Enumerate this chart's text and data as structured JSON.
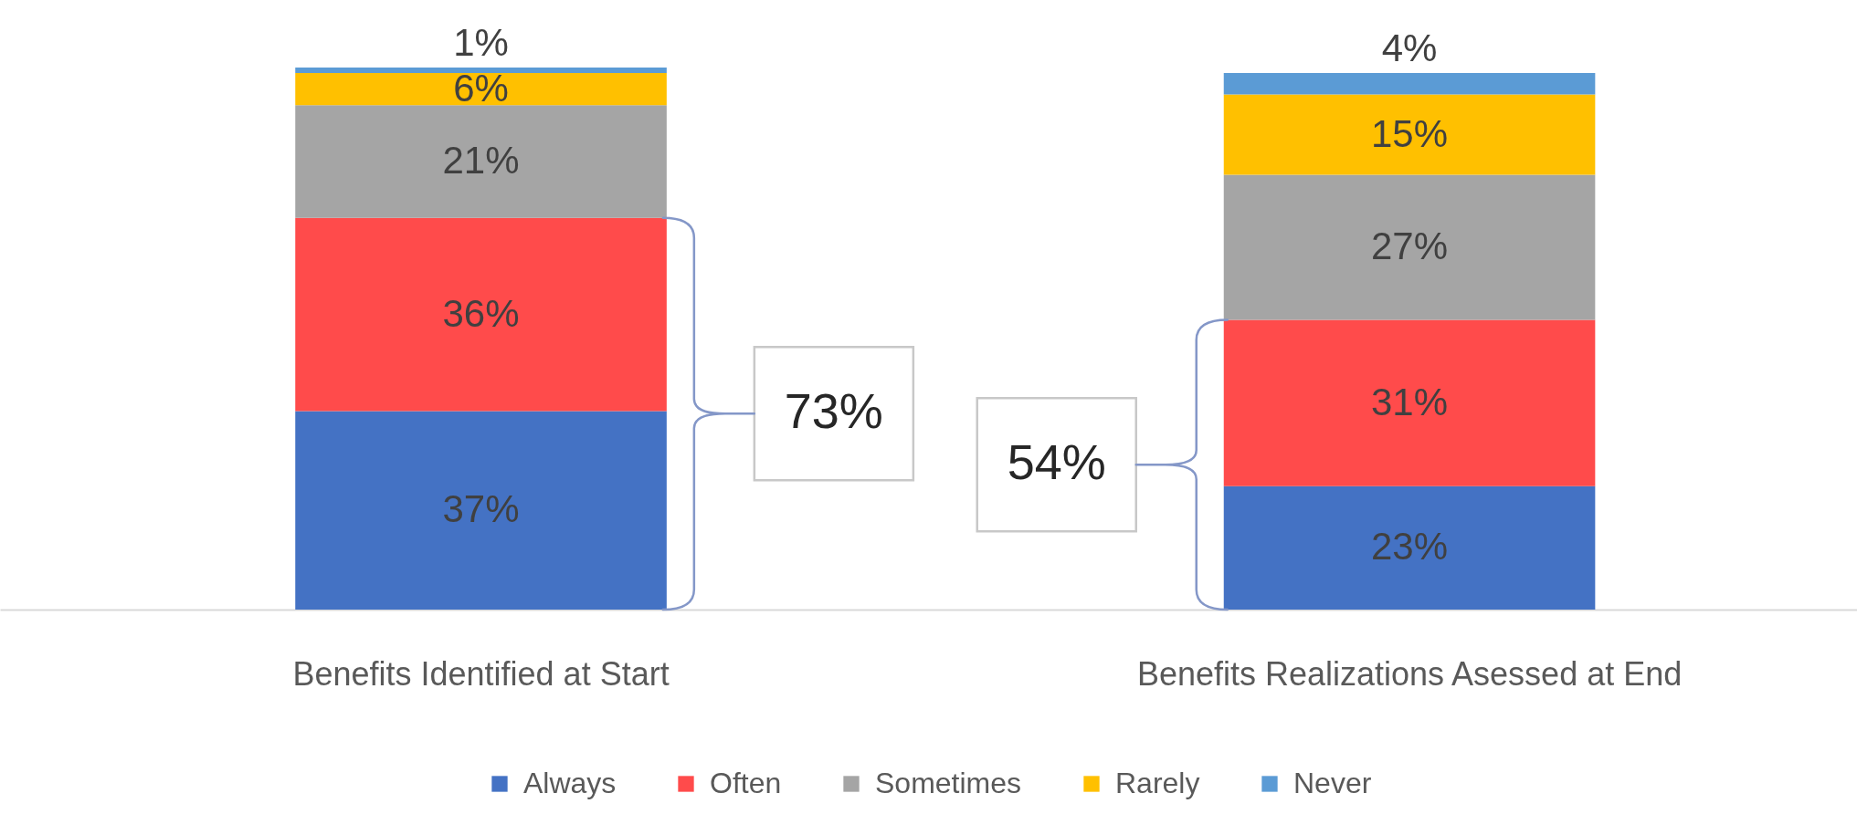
{
  "chart_data": {
    "type": "bar",
    "stacked": true,
    "categories": [
      "Benefits Identified at Start",
      "Benefits Realizations Asessed at End"
    ],
    "series": [
      {
        "name": "Always",
        "color": "#4472c4",
        "values": [
          37,
          23
        ],
        "value_labels": [
          "37%",
          "23%"
        ]
      },
      {
        "name": "Often",
        "color": "#ff4b4b",
        "values": [
          36,
          31
        ],
        "value_labels": [
          "36%",
          "31%"
        ]
      },
      {
        "name": "Sometimes",
        "color": "#a5a5a5",
        "values": [
          21,
          27
        ],
        "value_labels": [
          "21%",
          "27%"
        ]
      },
      {
        "name": "Rarely",
        "color": "#ffc000",
        "values": [
          6,
          15
        ],
        "value_labels": [
          "6%",
          "15%"
        ]
      },
      {
        "name": "Never",
        "color": "#5b9bd5",
        "values": [
          1,
          4
        ],
        "value_labels": [
          "1%",
          "4%"
        ]
      }
    ],
    "legend": "bottom",
    "annotations": [
      "73%",
      "54%"
    ]
  }
}
